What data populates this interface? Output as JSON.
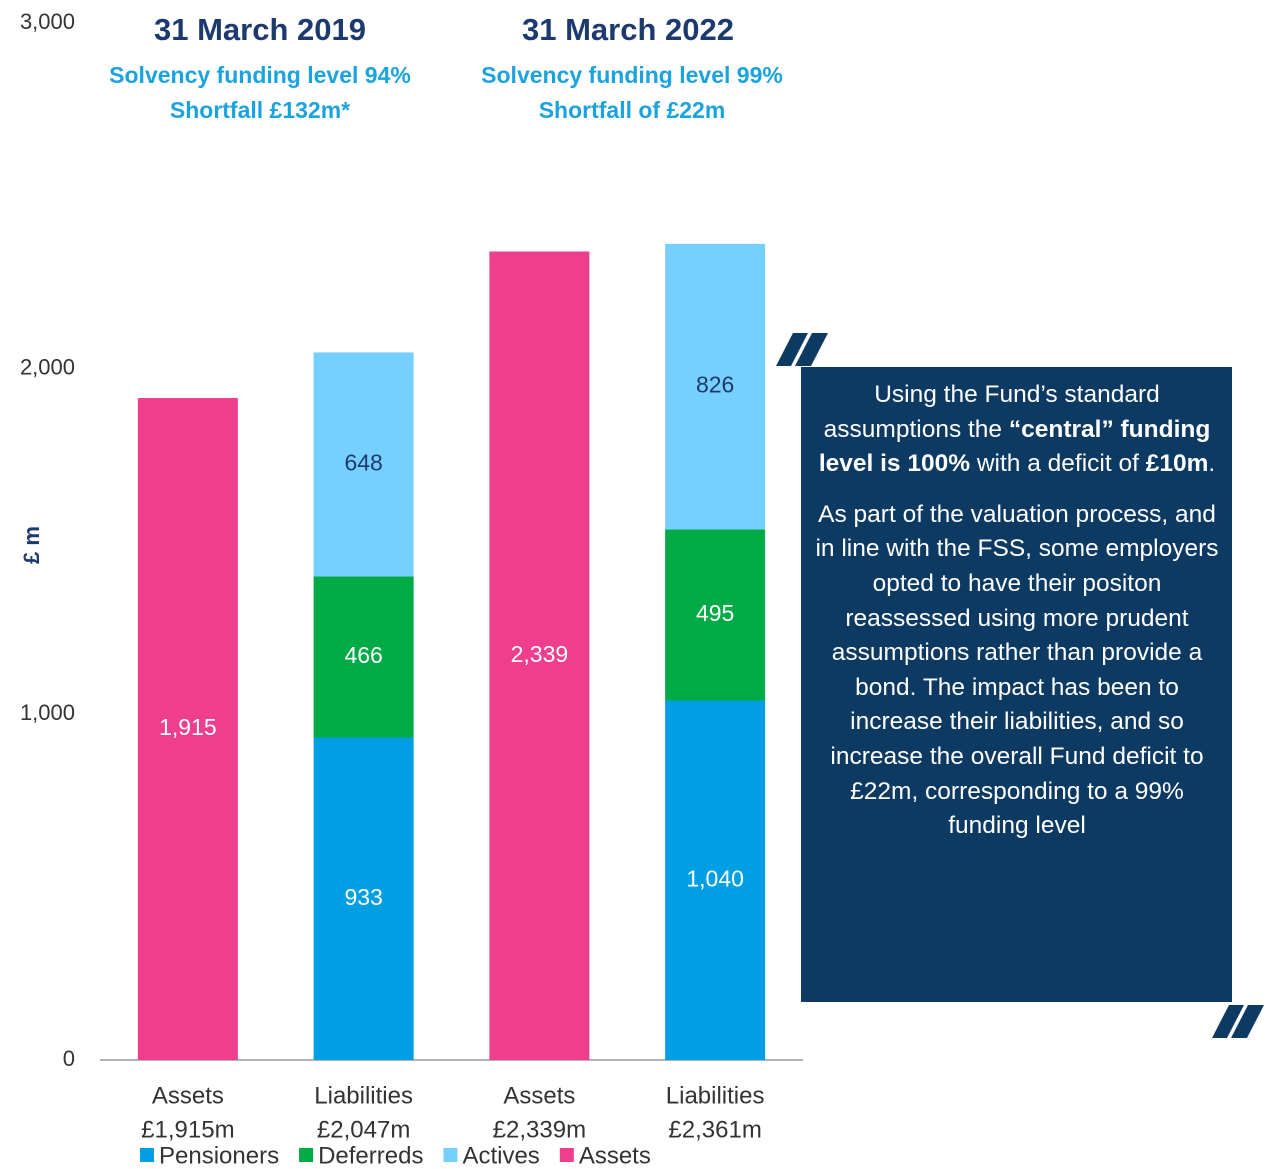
{
  "chart_data": {
    "type": "stacked_bar",
    "y_label": "£ m",
    "headings": [
      {
        "title": "31 March 2019",
        "lines": [
          "Solvency funding level 94%",
          "Shortfall £132m*"
        ]
      },
      {
        "title": "31 March 2022",
        "lines": [
          "Solvency funding level 99%",
          "Shortfall of £22m"
        ]
      }
    ],
    "categories": [
      [
        "Assets",
        "£1,915m"
      ],
      [
        "Liabilities",
        "£2,047m"
      ],
      [
        "Assets",
        "£2,339m"
      ],
      [
        "Liabilities",
        "£2,361m"
      ]
    ],
    "series": [
      {
        "name": "Pensioners",
        "color": "#009fe3",
        "label_color": "#ffffff",
        "values": [
          null,
          933,
          null,
          1040
        ],
        "value_labels": [
          null,
          "933",
          null,
          "1,040"
        ]
      },
      {
        "name": "Deferreds",
        "color": "#00ab45",
        "label_color": "#ffffff",
        "values": [
          null,
          466,
          null,
          495
        ],
        "value_labels": [
          null,
          "466",
          null,
          "495"
        ]
      },
      {
        "name": "Actives",
        "color": "#76d0ff",
        "label_color": "#1d3a6e",
        "values": [
          null,
          648,
          null,
          826
        ],
        "value_labels": [
          null,
          "648",
          null,
          "826"
        ]
      },
      {
        "name": "Assets",
        "color": "#ef3e8e",
        "label_color": "#ffffff",
        "values": [
          1915,
          null,
          2339,
          null
        ],
        "value_labels": [
          "1,915",
          null,
          "2,339",
          null
        ]
      }
    ],
    "ylim": [
      0,
      3000
    ],
    "yticks": [
      0,
      {
        "value": 1000,
        "label": "1,000"
      },
      {
        "value": 2000,
        "label": "2,000"
      },
      {
        "value": 3000,
        "label": "3,000"
      }
    ],
    "grid": false,
    "legend": "bottom",
    "note": {
      "paragraphs": [
        [
          {
            "text": "Using the Fund’s standard assumptions the ",
            "bold": false
          },
          {
            "text": "“central” funding level is 100%",
            "bold": true
          },
          {
            "text": " with a deficit of ",
            "bold": false
          },
          {
            "text": "£10m",
            "bold": true
          },
          {
            "text": ".",
            "bold": false
          }
        ],
        [
          {
            "text": "As part of the valuation process, and in line with the FSS, some employers opted to have their positon reassessed using more prudent assumptions rather than provide a bond.  The impact has been to increase their liabilities, and so increase the overall Fund deficit to £22m, corresponding to a 99% funding level",
            "bold": false
          }
        ]
      ]
    }
  }
}
